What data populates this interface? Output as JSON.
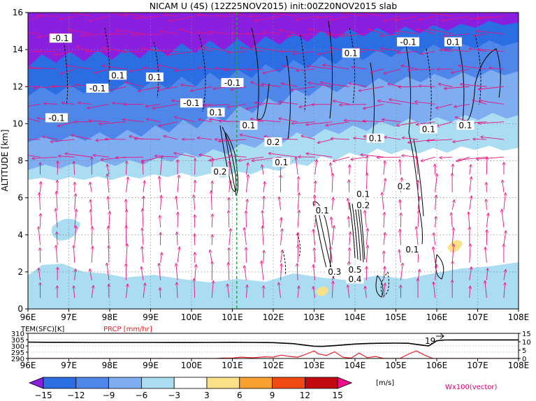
{
  "chart_data": [
    {
      "type": "heatmap",
      "title": "NICAM U (4S) (12Z25NOV2015) init:00Z20NOV2015 slab",
      "xlabel": "",
      "ylabel": "ALTITUDE [km]",
      "x_ticks": [
        "96E",
        "97E",
        "98E",
        "99E",
        "100E",
        "101E",
        "102E",
        "103E",
        "104E",
        "105E",
        "106E",
        "107E",
        "108E"
      ],
      "x_range": [
        96,
        108
      ],
      "y_ticks": [
        "0",
        "2",
        "4",
        "6",
        "8",
        "10",
        "12",
        "14",
        "16"
      ],
      "y_range": [
        0,
        16
      ],
      "grid": true,
      "marker_line_lon": 101,
      "contour_labels": [
        {
          "text": "-0.1",
          "lon": 96.8,
          "alt": 14.6
        },
        {
          "text": "-0.1",
          "lon": 97.7,
          "alt": 11.9
        },
        {
          "text": "-0.1",
          "lon": 96.7,
          "alt": 10.3
        },
        {
          "text": "0.1",
          "lon": 98.2,
          "alt": 12.6
        },
        {
          "text": "0.1",
          "lon": 99.1,
          "alt": 12.5
        },
        {
          "text": "-0.1",
          "lon": 100.0,
          "alt": 11.1
        },
        {
          "text": "0.1",
          "lon": 100.6,
          "alt": 10.6
        },
        {
          "text": "-0.1",
          "lon": 101.0,
          "alt": 12.2
        },
        {
          "text": "0.1",
          "lon": 101.4,
          "alt": 9.9
        },
        {
          "text": "0.2",
          "lon": 100.7,
          "alt": 7.4
        },
        {
          "text": "0.2",
          "lon": 102.0,
          "alt": 9.0
        },
        {
          "text": "0.1",
          "lon": 102.2,
          "alt": 7.9
        },
        {
          "text": "0.1",
          "lon": 103.9,
          "alt": 13.8
        },
        {
          "text": "0.1",
          "lon": 104.5,
          "alt": 9.2
        },
        {
          "text": "-0.1",
          "lon": 105.3,
          "alt": 14.4
        },
        {
          "text": "0.1",
          "lon": 105.8,
          "alt": 9.7
        },
        {
          "text": "0.1",
          "lon": 106.4,
          "alt": 14.4
        },
        {
          "text": "0.1",
          "lon": 106.7,
          "alt": 9.9
        },
        {
          "text": "0.2",
          "lon": 105.2,
          "alt": 6.6
        },
        {
          "text": "0.1",
          "lon": 104.2,
          "alt": 6.2
        },
        {
          "text": "0.2",
          "lon": 104.2,
          "alt": 5.6
        },
        {
          "text": "0.1",
          "lon": 103.2,
          "alt": 5.3
        },
        {
          "text": "0.1",
          "lon": 105.4,
          "alt": 3.2
        },
        {
          "text": "0.3",
          "lon": 103.5,
          "alt": 2.0
        },
        {
          "text": "0.5",
          "lon": 104.0,
          "alt": 2.1
        },
        {
          "text": "0.4",
          "lon": 104.0,
          "alt": 1.6
        }
      ]
    },
    {
      "type": "line",
      "title": "",
      "xlabel": "",
      "ylabel_left": "TEM(SFC)[K]",
      "ylabel_right": "PRCP [mm/hr]",
      "x_ticks": [
        "96E",
        "97E",
        "98E",
        "99E",
        "100E",
        "101E",
        "102E",
        "103E",
        "104E",
        "105E",
        "106E",
        "107E",
        "108E"
      ],
      "x_range": [
        96,
        108
      ],
      "y_left_ticks": [
        "290",
        "295",
        "300",
        "305",
        "310"
      ],
      "y_left_range": [
        290,
        310
      ],
      "y_right_ticks": [
        "0",
        "5",
        "10",
        "15"
      ],
      "y_right_range": [
        0,
        15
      ],
      "series": [
        {
          "name": "TEM(SFC)[K]",
          "axis": "left",
          "color": "#000000",
          "x": [
            96.0,
            96.5,
            97.0,
            97.5,
            98.0,
            98.5,
            99.0,
            99.5,
            100.0,
            100.5,
            101.0,
            101.5,
            102.0,
            102.5,
            102.8,
            103.0,
            103.2,
            103.5,
            103.8,
            104.0,
            104.3,
            104.6,
            105.0,
            105.3,
            105.6,
            105.8,
            106.0,
            106.2,
            106.5,
            107.0,
            107.5,
            108.0
          ],
          "values": [
            303.0,
            302.9,
            302.9,
            302.8,
            302.8,
            302.8,
            302.8,
            302.7,
            302.7,
            302.8,
            302.9,
            302.8,
            302.6,
            301.8,
            300.5,
            299.8,
            299.6,
            300.2,
            301.0,
            301.5,
            301.9,
            302.1,
            302.2,
            302.1,
            300.8,
            300.0,
            304.1,
            304.7,
            304.8,
            304.8,
            304.8,
            304.8
          ]
        },
        {
          "name": "PRCP [mm/hr]",
          "axis": "right",
          "color": "#e8202a",
          "x": [
            96.0,
            100.6,
            100.8,
            101.0,
            101.2,
            101.5,
            101.8,
            102.0,
            102.2,
            102.4,
            102.6,
            102.8,
            103.0,
            103.1,
            103.3,
            103.5,
            103.7,
            103.9,
            104.1,
            104.3,
            104.5,
            104.7,
            104.9,
            105.1,
            105.3,
            105.5,
            105.7,
            105.9,
            108.0
          ],
          "values": [
            0,
            0,
            0.3,
            0.2,
            0.8,
            0.4,
            1.0,
            0.8,
            2.0,
            1.2,
            0.8,
            2.5,
            4.5,
            2.8,
            1.8,
            4.0,
            0.8,
            0.2,
            3.2,
            0.5,
            1.2,
            0,
            0,
            0,
            2.5,
            4.5,
            2.0,
            0,
            0
          ]
        }
      ],
      "annotation": "19"
    },
    {
      "type": "colorbar",
      "labels": [
        "−15",
        "−12",
        "−9",
        "−6",
        "−3",
        "3",
        "6",
        "9",
        "12",
        "15"
      ],
      "colors": [
        "#8b1fe0",
        "#2b6ee4",
        "#4f86ea",
        "#7fadf2",
        "#aadcf2",
        "#ffffff",
        "#fbe08a",
        "#f8a030",
        "#f04a12",
        "#c00a10",
        "#f00d8c"
      ],
      "unit": "[m/s]",
      "vector_label": "Wx100(vector)"
    }
  ]
}
